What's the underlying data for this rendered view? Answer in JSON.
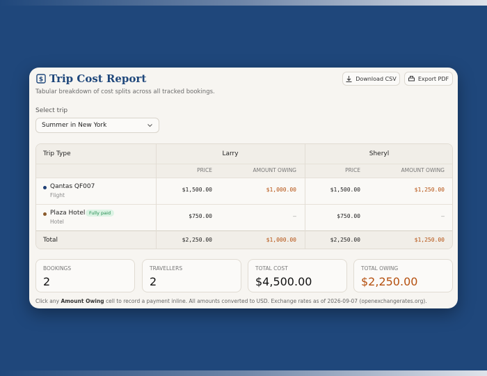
{
  "header": {
    "title": "Trip Cost Report",
    "subtitle": "Tabular breakdown of cost splits across all tracked bookings."
  },
  "actions": [
    "Download CSV",
    "Export PDF"
  ],
  "trip_select": {
    "label": "Select trip",
    "value": "Summer in New York"
  },
  "table": {
    "first_column": "Trip Type",
    "travellers": [
      "Larry",
      "Sheryl"
    ],
    "subcolumns": [
      "PRICE",
      "AMOUNT OWING"
    ],
    "rows": [
      {
        "name": "Qantas QF007",
        "type": "Flight",
        "cells": [
          "$1,500.00",
          "$1,000.00",
          "$1,500.00",
          "$1,250.00"
        ]
      },
      {
        "name": "Plaza Hotel",
        "badge": "Fully paid",
        "type": "Hotel",
        "cells": [
          "$750.00",
          "—",
          "$750.00",
          "—"
        ]
      }
    ],
    "total": {
      "label": "Total",
      "cells": [
        "$2,250.00",
        "$1,000.00",
        "$2,250.00",
        "$1,250.00"
      ]
    }
  },
  "stats": [
    {
      "label": "BOOKINGS",
      "value": 2
    },
    {
      "label": "TRAVELLERS",
      "value": 2
    },
    {
      "label": "TOTAL COST",
      "value": "$4,500.00"
    },
    {
      "label": "TOTAL OWING",
      "value": "$2,250.00"
    }
  ],
  "footnote": {
    "before": "Click any",
    "emphasis": "Amount Owing",
    "after": "cell to record a payment inline. All amounts converted to USD. Exchange rates as of 2026-09-07 (openexchangerates.org)."
  }
}
